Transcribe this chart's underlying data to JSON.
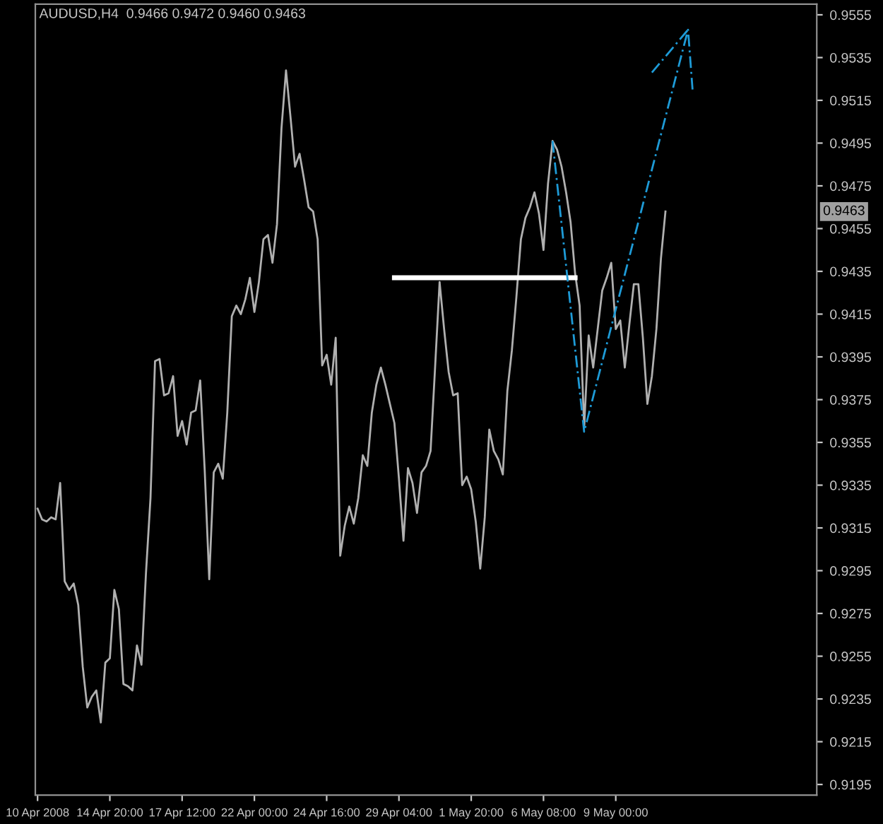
{
  "chart_data": {
    "type": "line",
    "title": "AUDUSD,H4  0.9466 0.9472 0.9460 0.9463",
    "categories": [
      "10 Apr 2008",
      null,
      null,
      null,
      null,
      null,
      null,
      null,
      null,
      null,
      null,
      null,
      null,
      null,
      null,
      null,
      "14 Apr 20:00",
      null,
      null,
      null,
      null,
      null,
      null,
      null,
      null,
      null,
      null,
      null,
      null,
      null,
      null,
      null,
      "17 Apr 12:00",
      null,
      null,
      null,
      null,
      null,
      null,
      null,
      null,
      null,
      null,
      null,
      null,
      null,
      null,
      null,
      "22 Apr 00:00",
      null,
      null,
      null,
      null,
      null,
      null,
      null,
      null,
      null,
      null,
      null,
      null,
      null,
      null,
      null,
      "24 Apr 16:00",
      null,
      null,
      null,
      null,
      null,
      null,
      null,
      null,
      null,
      null,
      null,
      null,
      null,
      null,
      null,
      "29 Apr 04:00",
      null,
      null,
      null,
      null,
      null,
      null,
      null,
      null,
      null,
      null,
      null,
      null,
      null,
      null,
      null,
      "1 May 20:00",
      null,
      null,
      null,
      null,
      null,
      null,
      null,
      null,
      null,
      null,
      null,
      null,
      null,
      null,
      null,
      "6 May 08:00",
      null,
      null,
      null,
      null,
      null,
      null,
      null,
      null,
      null,
      null,
      null,
      null,
      null,
      null,
      null,
      "9 May 00:00",
      null,
      null,
      null,
      null,
      null,
      null,
      null,
      null,
      null,
      null,
      null,
      null,
      null,
      null,
      null,
      null,
      null,
      null,
      null,
      null,
      null,
      null,
      null,
      null,
      null,
      null,
      null,
      null,
      null,
      null,
      null,
      null,
      null,
      null,
      null,
      null,
      null,
      null,
      null,
      null,
      null,
      null,
      null,
      null
    ],
    "series": [
      {
        "color": "#b0b0b0",
        "line_style": "solid",
        "values": [
          0.9324,
          0.9319,
          0.9318,
          0.932,
          0.9319,
          0.9336,
          0.929,
          0.9286,
          0.9289,
          0.9279,
          0.925,
          0.9231,
          0.9236,
          0.9239,
          0.9224,
          0.9252,
          0.9254,
          0.9286,
          0.9277,
          0.9242,
          0.9241,
          0.9239,
          0.926,
          0.9251,
          0.9294,
          0.9329,
          0.9393,
          0.9394,
          0.9377,
          0.9378,
          0.9386,
          0.9358,
          0.9365,
          0.9354,
          0.9369,
          0.937,
          0.9384,
          0.9342,
          0.9291,
          0.9341,
          0.9345,
          0.9338,
          0.9369,
          0.9414,
          0.9419,
          0.9415,
          0.9422,
          0.9432,
          0.9416,
          0.943,
          0.945,
          0.9452,
          0.9439,
          0.9457,
          0.9502,
          0.9529,
          0.9507,
          0.9484,
          0.949,
          0.9478,
          0.9465,
          0.9463,
          0.945,
          0.9391,
          0.9396,
          0.9382,
          0.9404,
          0.9302,
          0.9316,
          0.9325,
          0.9317,
          0.9329,
          0.9349,
          0.9344,
          0.9369,
          0.9382,
          0.939,
          0.9382,
          0.9373,
          0.9364,
          0.9338,
          0.9309,
          0.9343,
          0.9336,
          0.9322,
          0.9341,
          0.9344,
          0.9351,
          0.939,
          0.943,
          0.9408,
          0.9388,
          0.9377,
          0.9378,
          0.9335,
          0.9339,
          0.9333,
          0.9318,
          0.9296,
          0.932,
          0.9361,
          0.9351,
          0.9347,
          0.934,
          0.9379,
          0.9398,
          0.9423,
          0.945,
          0.946,
          0.9465,
          0.9472,
          0.9462,
          0.9445,
          0.9476,
          0.9496,
          0.9492,
          0.9484,
          0.9472,
          0.9458,
          0.9434,
          0.9419,
          0.9362,
          0.9405,
          0.939,
          0.9408,
          0.9426,
          0.9432,
          0.9439,
          0.9408,
          0.9412,
          0.939,
          0.941,
          0.9429,
          0.9429,
          0.9404,
          0.9373,
          0.9386,
          0.9408,
          0.9441,
          0.9463,
          null,
          null,
          null,
          null,
          null,
          null,
          null,
          null,
          null,
          null,
          null,
          null,
          null,
          null,
          null,
          null,
          null,
          null,
          null,
          null,
          null,
          null,
          null,
          null,
          null,
          null,
          null,
          null,
          null,
          null,
          null,
          null,
          null
        ]
      },
      {
        "color": "#ffffff",
        "line_style": "solid",
        "values": [
          null,
          null,
          null,
          null,
          null,
          null,
          null,
          null,
          null,
          null,
          null,
          null,
          null,
          null,
          null,
          null,
          null,
          null,
          null,
          null,
          null,
          null,
          null,
          null,
          null,
          null,
          null,
          null,
          null,
          null,
          null,
          null,
          null,
          null,
          null,
          null,
          null,
          null,
          null,
          null,
          null,
          null,
          null,
          null,
          null,
          null,
          null,
          null,
          null,
          null,
          null,
          null,
          null,
          null,
          null,
          null,
          null,
          null,
          null,
          null,
          null,
          null,
          null,
          null,
          null,
          null,
          null,
          null,
          null,
          null,
          null,
          null,
          null,
          null,
          null,
          null,
          null,
          null,
          null,
          0.9432,
          null,
          null,
          null,
          null,
          null,
          null,
          null,
          null,
          null,
          null,
          null,
          null,
          null,
          null,
          null,
          null,
          null,
          null,
          null,
          null,
          null,
          null,
          null,
          null,
          null,
          null,
          null,
          null,
          null,
          null,
          null,
          null,
          null,
          null,
          null,
          null,
          null,
          null,
          null,
          0.9432,
          null,
          null,
          null,
          null,
          null,
          null,
          null,
          null,
          null,
          null,
          null,
          null,
          null,
          null,
          null,
          null,
          null,
          null,
          null,
          null,
          null,
          null,
          null,
          null,
          null,
          null,
          null,
          null,
          null,
          null,
          null,
          null,
          null,
          null,
          null,
          null,
          null,
          null,
          null,
          null,
          null,
          null,
          null,
          null,
          null,
          null,
          null,
          null,
          null,
          null,
          null,
          null,
          null
        ]
      },
      {
        "color": "#1e9bd7",
        "line_style": "dashed",
        "values": [
          null,
          null,
          null,
          null,
          null,
          null,
          null,
          null,
          null,
          null,
          null,
          null,
          null,
          null,
          null,
          null,
          null,
          null,
          null,
          null,
          null,
          null,
          null,
          null,
          null,
          null,
          null,
          null,
          null,
          null,
          null,
          null,
          null,
          null,
          null,
          null,
          null,
          null,
          null,
          null,
          null,
          null,
          null,
          null,
          null,
          null,
          null,
          null,
          null,
          null,
          null,
          null,
          null,
          null,
          null,
          null,
          null,
          null,
          null,
          null,
          null,
          null,
          null,
          null,
          null,
          null,
          null,
          null,
          null,
          null,
          null,
          null,
          null,
          null,
          null,
          null,
          null,
          null,
          null,
          null,
          null,
          null,
          null,
          null,
          null,
          null,
          null,
          null,
          null,
          null,
          null,
          null,
          null,
          null,
          null,
          null,
          null,
          null,
          null,
          null,
          null,
          null,
          null,
          null,
          null,
          null,
          null,
          null,
          null,
          null,
          null,
          null,
          null,
          null,
          0.9496,
          null,
          null,
          null,
          null,
          null,
          null,
          0.936,
          null,
          null,
          null,
          null,
          null,
          null,
          null,
          null,
          null,
          null,
          null,
          null,
          null,
          null,
          null,
          null,
          null,
          null,
          null,
          null,
          null,
          null,
          0.9548,
          0.952,
          null,
          null,
          null,
          null,
          null,
          null,
          null,
          null,
          null,
          null,
          null,
          null,
          null,
          null,
          null,
          null,
          null,
          null,
          null,
          null,
          null,
          null,
          null,
          null,
          null,
          null,
          null
        ]
      },
      {
        "color": "#1e9bd7",
        "line_style": "dashed",
        "values": [
          null,
          null,
          null,
          null,
          null,
          null,
          null,
          null,
          null,
          null,
          null,
          null,
          null,
          null,
          null,
          null,
          null,
          null,
          null,
          null,
          null,
          null,
          null,
          null,
          null,
          null,
          null,
          null,
          null,
          null,
          null,
          null,
          null,
          null,
          null,
          null,
          null,
          null,
          null,
          null,
          null,
          null,
          null,
          null,
          null,
          null,
          null,
          null,
          null,
          null,
          null,
          null,
          null,
          null,
          null,
          null,
          null,
          null,
          null,
          null,
          null,
          null,
          null,
          null,
          null,
          null,
          null,
          null,
          null,
          null,
          null,
          null,
          null,
          null,
          null,
          null,
          null,
          null,
          null,
          null,
          null,
          null,
          null,
          null,
          null,
          null,
          null,
          null,
          null,
          null,
          null,
          null,
          null,
          null,
          null,
          null,
          null,
          null,
          null,
          null,
          null,
          null,
          null,
          null,
          null,
          null,
          null,
          null,
          null,
          null,
          null,
          null,
          null,
          null,
          null,
          null,
          null,
          null,
          null,
          null,
          null,
          null,
          null,
          null,
          null,
          null,
          null,
          null,
          null,
          null,
          null,
          null,
          null,
          null,
          null,
          null,
          0.9528,
          null,
          null,
          null,
          null,
          null,
          null,
          null,
          0.9548,
          null,
          null,
          null,
          null,
          null,
          null,
          null,
          null,
          null,
          null,
          null,
          null,
          null,
          null,
          null,
          null,
          null,
          null,
          null,
          null,
          null,
          null,
          null,
          null,
          null,
          null,
          null,
          null
        ]
      }
    ],
    "annotations": [
      {
        "text": "0.9463",
        "y": 0.9463
      }
    ],
    "ylim": [
      0.919,
      0.956
    ],
    "yticks": [
      0.9195,
      0.9215,
      0.9235,
      0.9255,
      0.9275,
      0.9295,
      0.9315,
      0.9335,
      0.9355,
      0.9375,
      0.9395,
      0.9415,
      0.9435,
      0.9455,
      0.9475,
      0.9495,
      0.9515,
      0.9535,
      0.9555
    ],
    "grid": false,
    "legend": false
  }
}
